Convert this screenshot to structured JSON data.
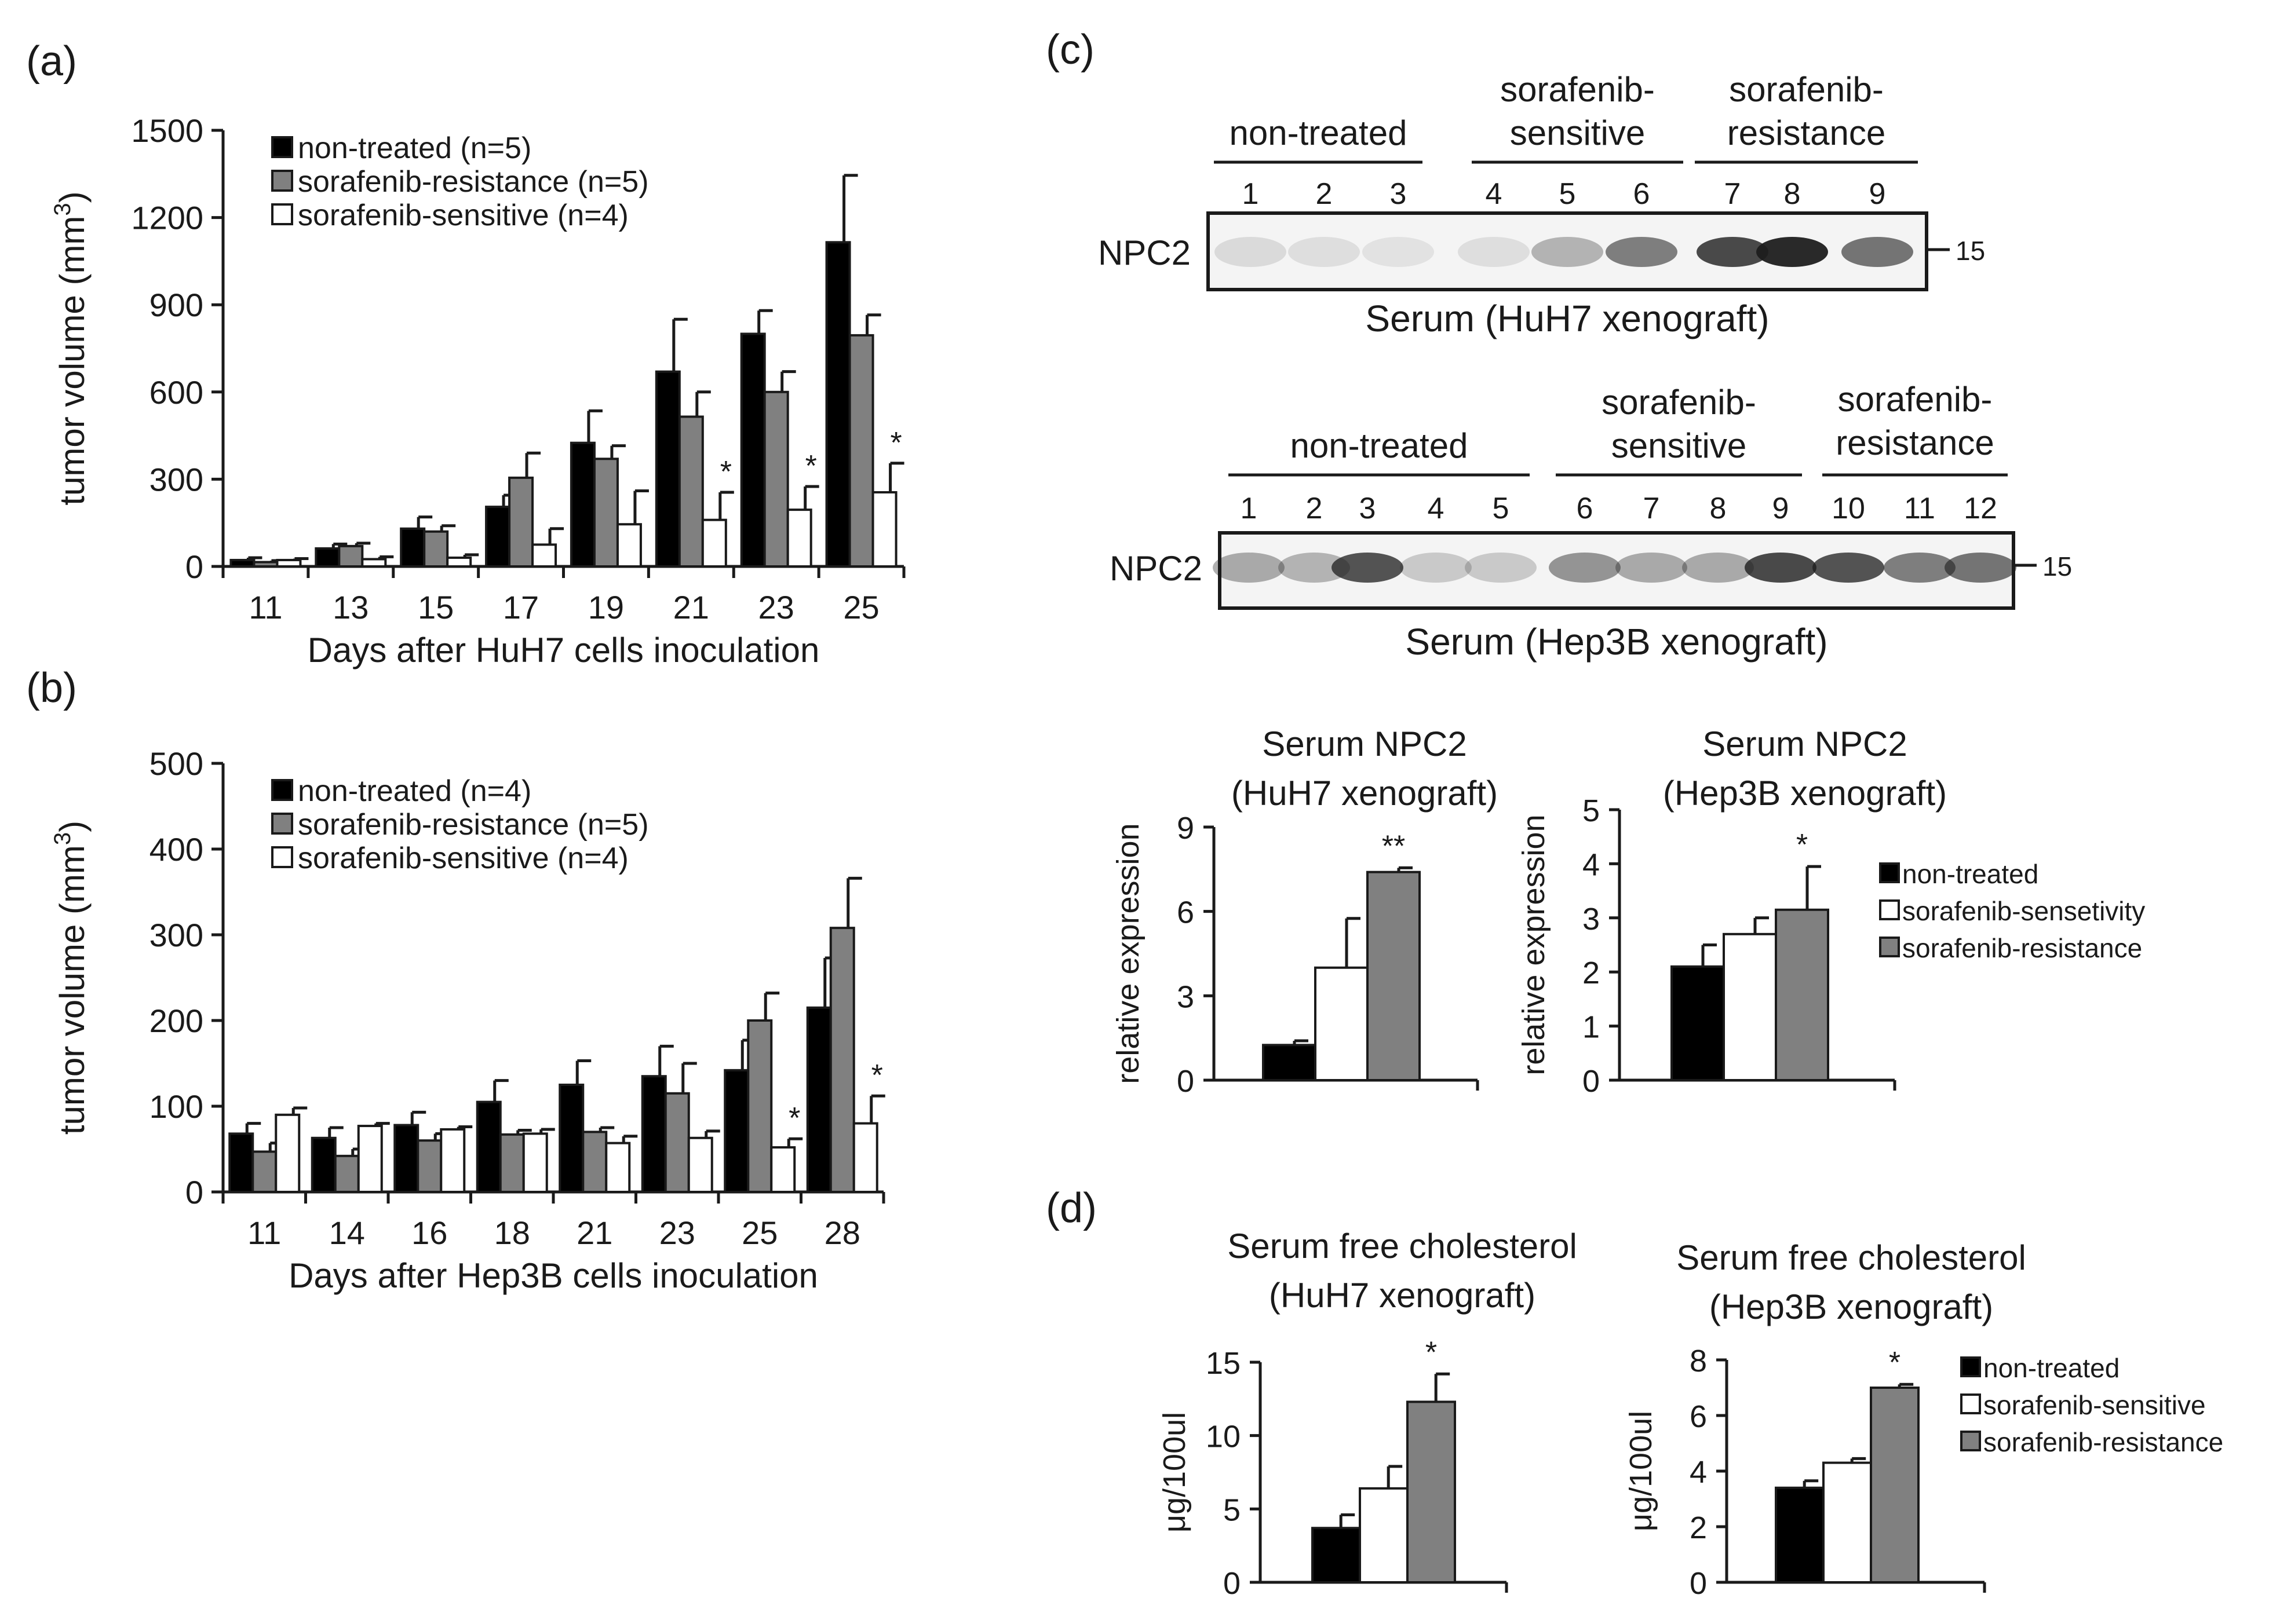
{
  "figure": {
    "panel_labels": {
      "a": "(a)",
      "b": "(b)",
      "c": "(c)",
      "d": "(d)"
    }
  },
  "colors": {
    "non_treated": "#000000",
    "resistance": "#808080",
    "sensitive": "#ffffff",
    "axis": "#1a1a1a",
    "blot_bg": "#f4f4f4",
    "band": "#1e1e1e"
  },
  "chart_data": [
    {
      "id": "a",
      "type": "bar",
      "xlabel": "Days after HuH7 cells inoculation",
      "ylabel": "tumor volume (mm³)",
      "ylabel_main": "tumor volume (mm",
      "ylabel_sup": "3",
      "ylabel_end": ")",
      "ylim": [
        0,
        1500
      ],
      "yticks": [
        0,
        300,
        600,
        900,
        1200,
        1500
      ],
      "categories": [
        "11",
        "13",
        "15",
        "17",
        "19",
        "21",
        "23",
        "25"
      ],
      "series": [
        {
          "name": "non-treated (n=5)",
          "color": "#000000",
          "values": [
            22,
            62,
            130,
            205,
            425,
            670,
            800,
            1115
          ],
          "errors": [
            8,
            15,
            40,
            40,
            110,
            180,
            80,
            230
          ]
        },
        {
          "name": "sorafenib-resistance (n=5)",
          "color": "#808080",
          "values": [
            15,
            70,
            120,
            305,
            370,
            515,
            600,
            795
          ],
          "errors": [
            5,
            10,
            20,
            85,
            45,
            85,
            70,
            70
          ]
        },
        {
          "name": "sorafenib-sensitive (n=4)",
          "color": "#ffffff",
          "values": [
            22,
            25,
            30,
            75,
            145,
            160,
            195,
            255
          ],
          "errors": [
            5,
            8,
            10,
            55,
            115,
            95,
            80,
            100
          ]
        }
      ],
      "significance": [
        {
          "category": "21",
          "series": 2,
          "label": "*"
        },
        {
          "category": "23",
          "series": 2,
          "label": "*"
        },
        {
          "category": "25",
          "series": 2,
          "label": "*"
        }
      ],
      "legend_position": "top-left"
    },
    {
      "id": "b",
      "type": "bar",
      "xlabel": "Days after Hep3B cells inoculation",
      "ylabel": "tumor volume (mm³)",
      "ylabel_main": "tumor volume (mm",
      "ylabel_sup": "3",
      "ylabel_end": ")",
      "ylim": [
        0,
        500
      ],
      "yticks": [
        0,
        100,
        200,
        300,
        400,
        500
      ],
      "categories": [
        "11",
        "14",
        "16",
        "18",
        "21",
        "23",
        "25",
        "28"
      ],
      "series": [
        {
          "name": "non-treated (n=4)",
          "color": "#000000",
          "values": [
            68,
            63,
            78,
            105,
            125,
            135,
            142,
            215
          ],
          "errors": [
            12,
            12,
            15,
            25,
            28,
            35,
            35,
            58
          ]
        },
        {
          "name": "sorafenib-resistance (n=5)",
          "color": "#808080",
          "values": [
            47,
            42,
            60,
            67,
            70,
            115,
            200,
            308
          ],
          "errors": [
            10,
            8,
            8,
            5,
            5,
            35,
            32,
            58
          ]
        },
        {
          "name": "sorafenib-sensitive (n=4)",
          "color": "#ffffff",
          "values": [
            90,
            77,
            73,
            68,
            57,
            63,
            52,
            80
          ],
          "errors": [
            8,
            3,
            3,
            5,
            8,
            8,
            10,
            32
          ]
        }
      ],
      "significance": [
        {
          "category": "25",
          "series": 2,
          "label": "*"
        },
        {
          "category": "28",
          "series": 2,
          "label": "*"
        }
      ],
      "legend_position": "top-left"
    },
    {
      "id": "c-huh7",
      "type": "bar",
      "title_line1": "Serum NPC2",
      "title_line2": "(HuH7 xenograft)",
      "ylabel": "relative expression",
      "xlabel": "",
      "ylim": [
        0,
        9
      ],
      "yticks": [
        0,
        3,
        6,
        9
      ],
      "categories": [
        "non-treated",
        "sorafenib-sensetivity",
        "sorafenib-resistance"
      ],
      "values": [
        1.25,
        4.0,
        7.4
      ],
      "errors": [
        0.15,
        1.75,
        0.15
      ],
      "bar_colors": [
        "#000000",
        "#ffffff",
        "#808080"
      ],
      "significance": [
        {
          "index": 2,
          "label": "**"
        }
      ]
    },
    {
      "id": "c-hep3b",
      "type": "bar",
      "title_line1": "Serum NPC2",
      "title_line2": "(Hep3B xenograft)",
      "ylabel": "relative expression",
      "xlabel": "",
      "ylim": [
        0,
        5
      ],
      "yticks": [
        0,
        1,
        2,
        3,
        4,
        5
      ],
      "categories": [
        "non-treated",
        "sorafenib-sensetivity",
        "sorafenib-resistance"
      ],
      "values": [
        2.1,
        2.7,
        3.15
      ],
      "errors": [
        0.4,
        0.3,
        0.8
      ],
      "bar_colors": [
        "#000000",
        "#ffffff",
        "#808080"
      ],
      "significance": [
        {
          "index": 2,
          "label": "*"
        }
      ],
      "legend": [
        "non-treated",
        "sorafenib-sensetivity",
        "sorafenib-resistance"
      ],
      "legend_position": "right"
    },
    {
      "id": "d-huh7",
      "type": "bar",
      "title_line1": "Serum free cholesterol",
      "title_line2": "(HuH7 xenograft)",
      "ylabel": "μg/100ul",
      "xlabel": "",
      "ylim": [
        0,
        15
      ],
      "yticks": [
        0,
        5,
        10,
        15
      ],
      "categories": [
        "non-treated",
        "sorafenib-sensitive",
        "sorafenib-resistance"
      ],
      "values": [
        3.7,
        6.4,
        12.3
      ],
      "errors": [
        0.9,
        1.5,
        1.9
      ],
      "bar_colors": [
        "#000000",
        "#ffffff",
        "#808080"
      ],
      "significance": [
        {
          "index": 2,
          "label": "*"
        }
      ]
    },
    {
      "id": "d-hep3b",
      "type": "bar",
      "title_line1": "Serum free cholesterol",
      "title_line2": "(Hep3B xenograft)",
      "ylabel": "μg/100ul",
      "xlabel": "",
      "ylim": [
        0,
        8
      ],
      "yticks": [
        0,
        2,
        4,
        6,
        8
      ],
      "categories": [
        "non-treated",
        "sorafenib-sensitive",
        "sorafenib-resistance"
      ],
      "values": [
        3.4,
        4.3,
        7.0
      ],
      "errors": [
        0.25,
        0.15,
        0.12
      ],
      "bar_colors": [
        "#000000",
        "#ffffff",
        "#808080"
      ],
      "significance": [
        {
          "index": 2,
          "label": "*"
        }
      ],
      "legend": [
        "non-treated",
        "sorafenib-sensitive",
        "sorafenib-resistance"
      ],
      "legend_position": "right"
    }
  ],
  "blots": [
    {
      "id": "blot-huh7",
      "row_label": "NPC2",
      "caption": "Serum (HuH7 xenograft)",
      "marker": "15",
      "groups": [
        {
          "label_lines": [
            "non-treated"
          ],
          "lanes": [
            "1",
            "2",
            "3"
          ]
        },
        {
          "label_lines": [
            "sorafenib-",
            "sensitive"
          ],
          "lanes": [
            "4",
            "5",
            "6"
          ]
        },
        {
          "label_lines": [
            "sorafenib-",
            "resistance"
          ],
          "lanes": [
            "7",
            "8",
            "9"
          ]
        }
      ],
      "band_intensity": [
        0.12,
        0.1,
        0.08,
        0.1,
        0.3,
        0.55,
        0.8,
        0.95,
        0.6
      ]
    },
    {
      "id": "blot-hep3b",
      "row_label": "NPC2",
      "caption": "Serum (Hep3B xenograft)",
      "marker": "15",
      "groups": [
        {
          "label_lines": [
            "non-treated"
          ],
          "lanes": [
            "1",
            "2",
            "3",
            "4",
            "5"
          ]
        },
        {
          "label_lines": [
            "sorafenib-",
            "sensitive"
          ],
          "lanes": [
            "6",
            "7",
            "8",
            "9"
          ]
        },
        {
          "label_lines": [
            "sorafenib-",
            "resistance"
          ],
          "lanes": [
            "10",
            "11",
            "12"
          ]
        }
      ],
      "band_intensity": [
        0.35,
        0.3,
        0.75,
        0.2,
        0.2,
        0.45,
        0.35,
        0.35,
        0.8,
        0.75,
        0.55,
        0.6
      ]
    }
  ]
}
